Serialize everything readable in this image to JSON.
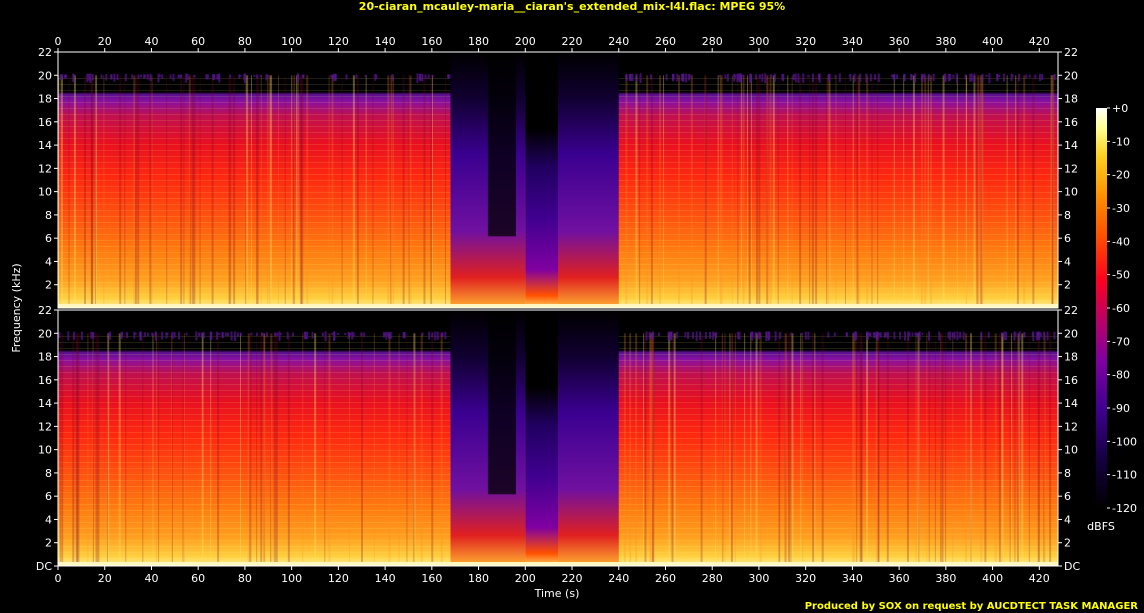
{
  "title": "20-ciaran_mcauley-maria__ciaran's_extended_mix-l4l.flac: MPEG 95%",
  "footer": "Produced by SOX on request by AUCDTECT TASK MANAGER",
  "chart_data": {
    "type": "heatmap",
    "title": "20-ciaran_mcauley-maria__ciaran's_extended_mix-l4l.flac: MPEG 95%",
    "xlabel": "Time (s)",
    "ylabel": "Frequency (kHz)",
    "colorbar_label": "dBFS",
    "xlim": [
      0,
      428
    ],
    "ylim": [
      0,
      22
    ],
    "x_ticks": [
      0,
      20,
      40,
      60,
      80,
      100,
      120,
      140,
      160,
      180,
      200,
      220,
      240,
      260,
      280,
      300,
      320,
      340,
      360,
      380,
      400,
      420
    ],
    "y_ticks": [
      "DC",
      "2",
      "4",
      "6",
      "8",
      "10",
      "12",
      "14",
      "16",
      "18",
      "20",
      "22"
    ],
    "y_tick_values": [
      0,
      2,
      4,
      6,
      8,
      10,
      12,
      14,
      16,
      18,
      20,
      22
    ],
    "colorbar_ticks": [
      "+0",
      "-10",
      "-20",
      "-30",
      "-40",
      "-50",
      "-60",
      "-70",
      "-80",
      "-90",
      "-100",
      "-110",
      "-120"
    ],
    "colorbar_values": [
      0,
      -10,
      -20,
      -30,
      -40,
      -50,
      -60,
      -70,
      -80,
      -90,
      -100,
      -110,
      -120
    ],
    "channels": 2,
    "cutoff_khz": 20,
    "low_energy_segments": [
      {
        "start": 168,
        "end": 200
      },
      {
        "start": 200,
        "end": 214
      },
      {
        "start": 214,
        "end": 240
      }
    ],
    "color_scale": [
      "#000000",
      "#140040",
      "#400090",
      "#8000a0",
      "#c00060",
      "#ff0020",
      "#ff5000",
      "#ff9000",
      "#ffd020",
      "#ffff90",
      "#ffffff"
    ]
  }
}
